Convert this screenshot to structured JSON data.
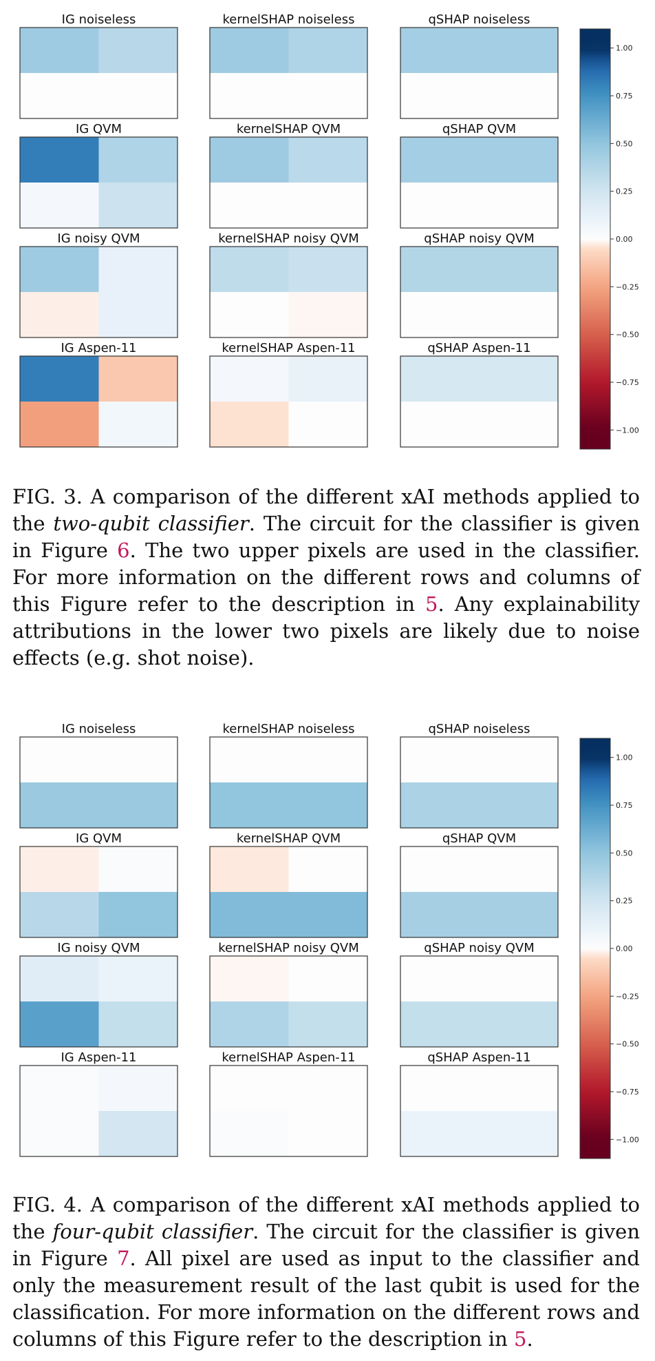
{
  "colormap": {
    "name": "RdBu",
    "neg_color": "#67001f",
    "zero_color": "#f7f7f7",
    "pos_color": "#053061",
    "ticks": [
      "1.00",
      "0.75",
      "0.50",
      "0.25",
      "0.00",
      "−0.25",
      "−0.50",
      "−0.75",
      "−1.00"
    ]
  },
  "figures": [
    {
      "caption": {
        "label": "FIG. 3.",
        "t1": "A comparison of the different xAI methods applied to the",
        "t2": "two-qubit classifier",
        "t3": ". The circuit for the classifier is given in Figure",
        "r1": "6",
        "t4": ". The two upper pixels are used in the classifier. For more information on the different rows and columns of this Figure refer to the description in",
        "r2": "5",
        "t5": ". Any explainability attributions in the lower two pixels are likely due to noise effects (e.g. shot noise)."
      }
    },
    {
      "caption": {
        "label": "FIG. 4.",
        "t1": "A comparison of the different xAI methods applied to the",
        "t2": "four-qubit classifier",
        "t3": ". The circuit for the classifier is given in Figure",
        "r1": "7",
        "t4": ". All pixel are used as input to the classifier and only the measurement result of the last qubit is used for the classification. For more information on the different rows and columns of this Figure refer to the description in",
        "r2": "5",
        "t5": "."
      }
    }
  ],
  "chart_data": [
    {
      "type": "heatmap",
      "colorbar_range": [
        -1.0,
        1.0
      ],
      "panels": [
        {
          "title": "IG noiseless",
          "values": [
            [
              0.45,
              0.35
            ],
            [
              0.0,
              0.0
            ]
          ]
        },
        {
          "title": "kernelSHAP noiseless",
          "values": [
            [
              0.45,
              0.38
            ],
            [
              0.0,
              0.0
            ]
          ]
        },
        {
          "title": "qSHAP noiseless",
          "values": [
            [
              0.43,
              0.43
            ],
            [
              0.0,
              0.0
            ]
          ]
        },
        {
          "title": "IG QVM",
          "values": [
            [
              0.82,
              0.38
            ],
            [
              0.05,
              0.27
            ]
          ]
        },
        {
          "title": "kernelSHAP QVM",
          "values": [
            [
              0.45,
              0.34
            ],
            [
              0.0,
              0.0
            ]
          ]
        },
        {
          "title": "qSHAP QVM",
          "values": [
            [
              0.43,
              0.43
            ],
            [
              0.0,
              0.0
            ]
          ]
        },
        {
          "title": "IG noisy QVM",
          "values": [
            [
              0.45,
              0.12
            ],
            [
              -0.02,
              0.12
            ]
          ]
        },
        {
          "title": "kernelSHAP noisy QVM",
          "values": [
            [
              0.32,
              0.28
            ],
            [
              0.0,
              -0.01
            ]
          ]
        },
        {
          "title": "qSHAP noisy QVM",
          "values": [
            [
              0.37,
              0.37
            ],
            [
              0.0,
              0.0
            ]
          ]
        },
        {
          "title": "IG Aspen-11",
          "values": [
            [
              0.82,
              -0.12
            ],
            [
              -0.27,
              0.06
            ]
          ]
        },
        {
          "title": "kernelSHAP Aspen-11",
          "values": [
            [
              0.05,
              0.11
            ],
            [
              -0.04,
              0.0
            ]
          ]
        },
        {
          "title": "qSHAP Aspen-11",
          "values": [
            [
              0.22,
              0.22
            ],
            [
              0.0,
              0.0
            ]
          ]
        }
      ]
    },
    {
      "type": "heatmap",
      "colorbar_range": [
        -1.0,
        1.0
      ],
      "panels": [
        {
          "title": "IG noiseless",
          "values": [
            [
              0.0,
              0.0
            ],
            [
              0.47,
              0.47
            ]
          ]
        },
        {
          "title": "kernelSHAP noiseless",
          "values": [
            [
              0.0,
              0.0
            ],
            [
              0.5,
              0.5
            ]
          ]
        },
        {
          "title": "qSHAP noiseless",
          "values": [
            [
              0.0,
              0.0
            ],
            [
              0.4,
              0.4
            ]
          ]
        },
        {
          "title": "IG QVM",
          "values": [
            [
              -0.02,
              0.02
            ],
            [
              0.35,
              0.5
            ]
          ]
        },
        {
          "title": "kernelSHAP QVM",
          "values": [
            [
              -0.03,
              0.0
            ],
            [
              0.55,
              0.55
            ]
          ]
        },
        {
          "title": "qSHAP QVM",
          "values": [
            [
              0.0,
              0.0
            ],
            [
              0.42,
              0.42
            ]
          ]
        },
        {
          "title": "IG noisy QVM",
          "values": [
            [
              0.16,
              0.1
            ],
            [
              0.68,
              0.3
            ]
          ]
        },
        {
          "title": "kernelSHAP noisy QVM",
          "values": [
            [
              -0.01,
              0.0
            ],
            [
              0.38,
              0.3
            ]
          ]
        },
        {
          "title": "qSHAP noisy QVM",
          "values": [
            [
              0.0,
              0.0
            ],
            [
              0.3,
              0.3
            ]
          ]
        },
        {
          "title": "IG Aspen-11",
          "values": [
            [
              0.02,
              0.05
            ],
            [
              0.02,
              0.24
            ]
          ]
        },
        {
          "title": "kernelSHAP Aspen-11",
          "values": [
            [
              0.0,
              0.0
            ],
            [
              0.02,
              0.0
            ]
          ]
        },
        {
          "title": "qSHAP Aspen-11",
          "values": [
            [
              0.0,
              0.0
            ],
            [
              0.1,
              0.1
            ]
          ]
        }
      ]
    }
  ]
}
